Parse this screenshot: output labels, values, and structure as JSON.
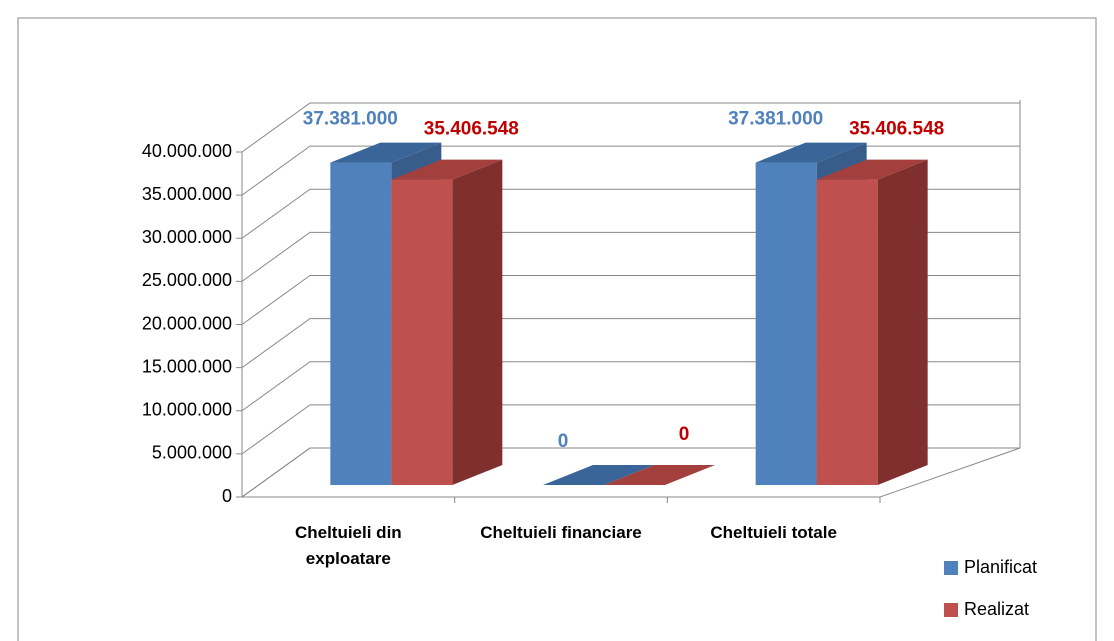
{
  "chart_data": {
    "type": "bar3d",
    "categories": [
      "Cheltuieli din exploatare",
      "Cheltuieli financiare",
      "Cheltuieli totale"
    ],
    "series": [
      {
        "name": "Planificat",
        "color": "#4f81bd",
        "values": [
          37381000,
          0,
          37381000
        ],
        "value_labels": [
          "37.381.000",
          "0",
          "37.381.000"
        ]
      },
      {
        "name": "Realizat",
        "color": "#c0504d",
        "values": [
          35406548,
          0,
          35406548
        ],
        "value_labels": [
          "35.406.548",
          "0",
          "35.406.548"
        ]
      }
    ],
    "ylim": [
      0,
      40000000
    ],
    "yticks": [
      0,
      {
        "value": 5000000,
        "label": "5.000.000"
      },
      {
        "value": 10000000,
        "label": "10.000.000"
      },
      {
        "value": 15000000,
        "label": "15.000.000"
      },
      {
        "value": 20000000,
        "label": "20.000.000"
      },
      {
        "value": 25000000,
        "label": "25.000.000"
      },
      {
        "value": 30000000,
        "label": "30.000.000"
      },
      {
        "value": 35000000,
        "label": "35.000.000"
      },
      {
        "value": 40000000,
        "label": "40.000.000"
      }
    ],
    "grid": true,
    "legend": "bottom-right"
  }
}
